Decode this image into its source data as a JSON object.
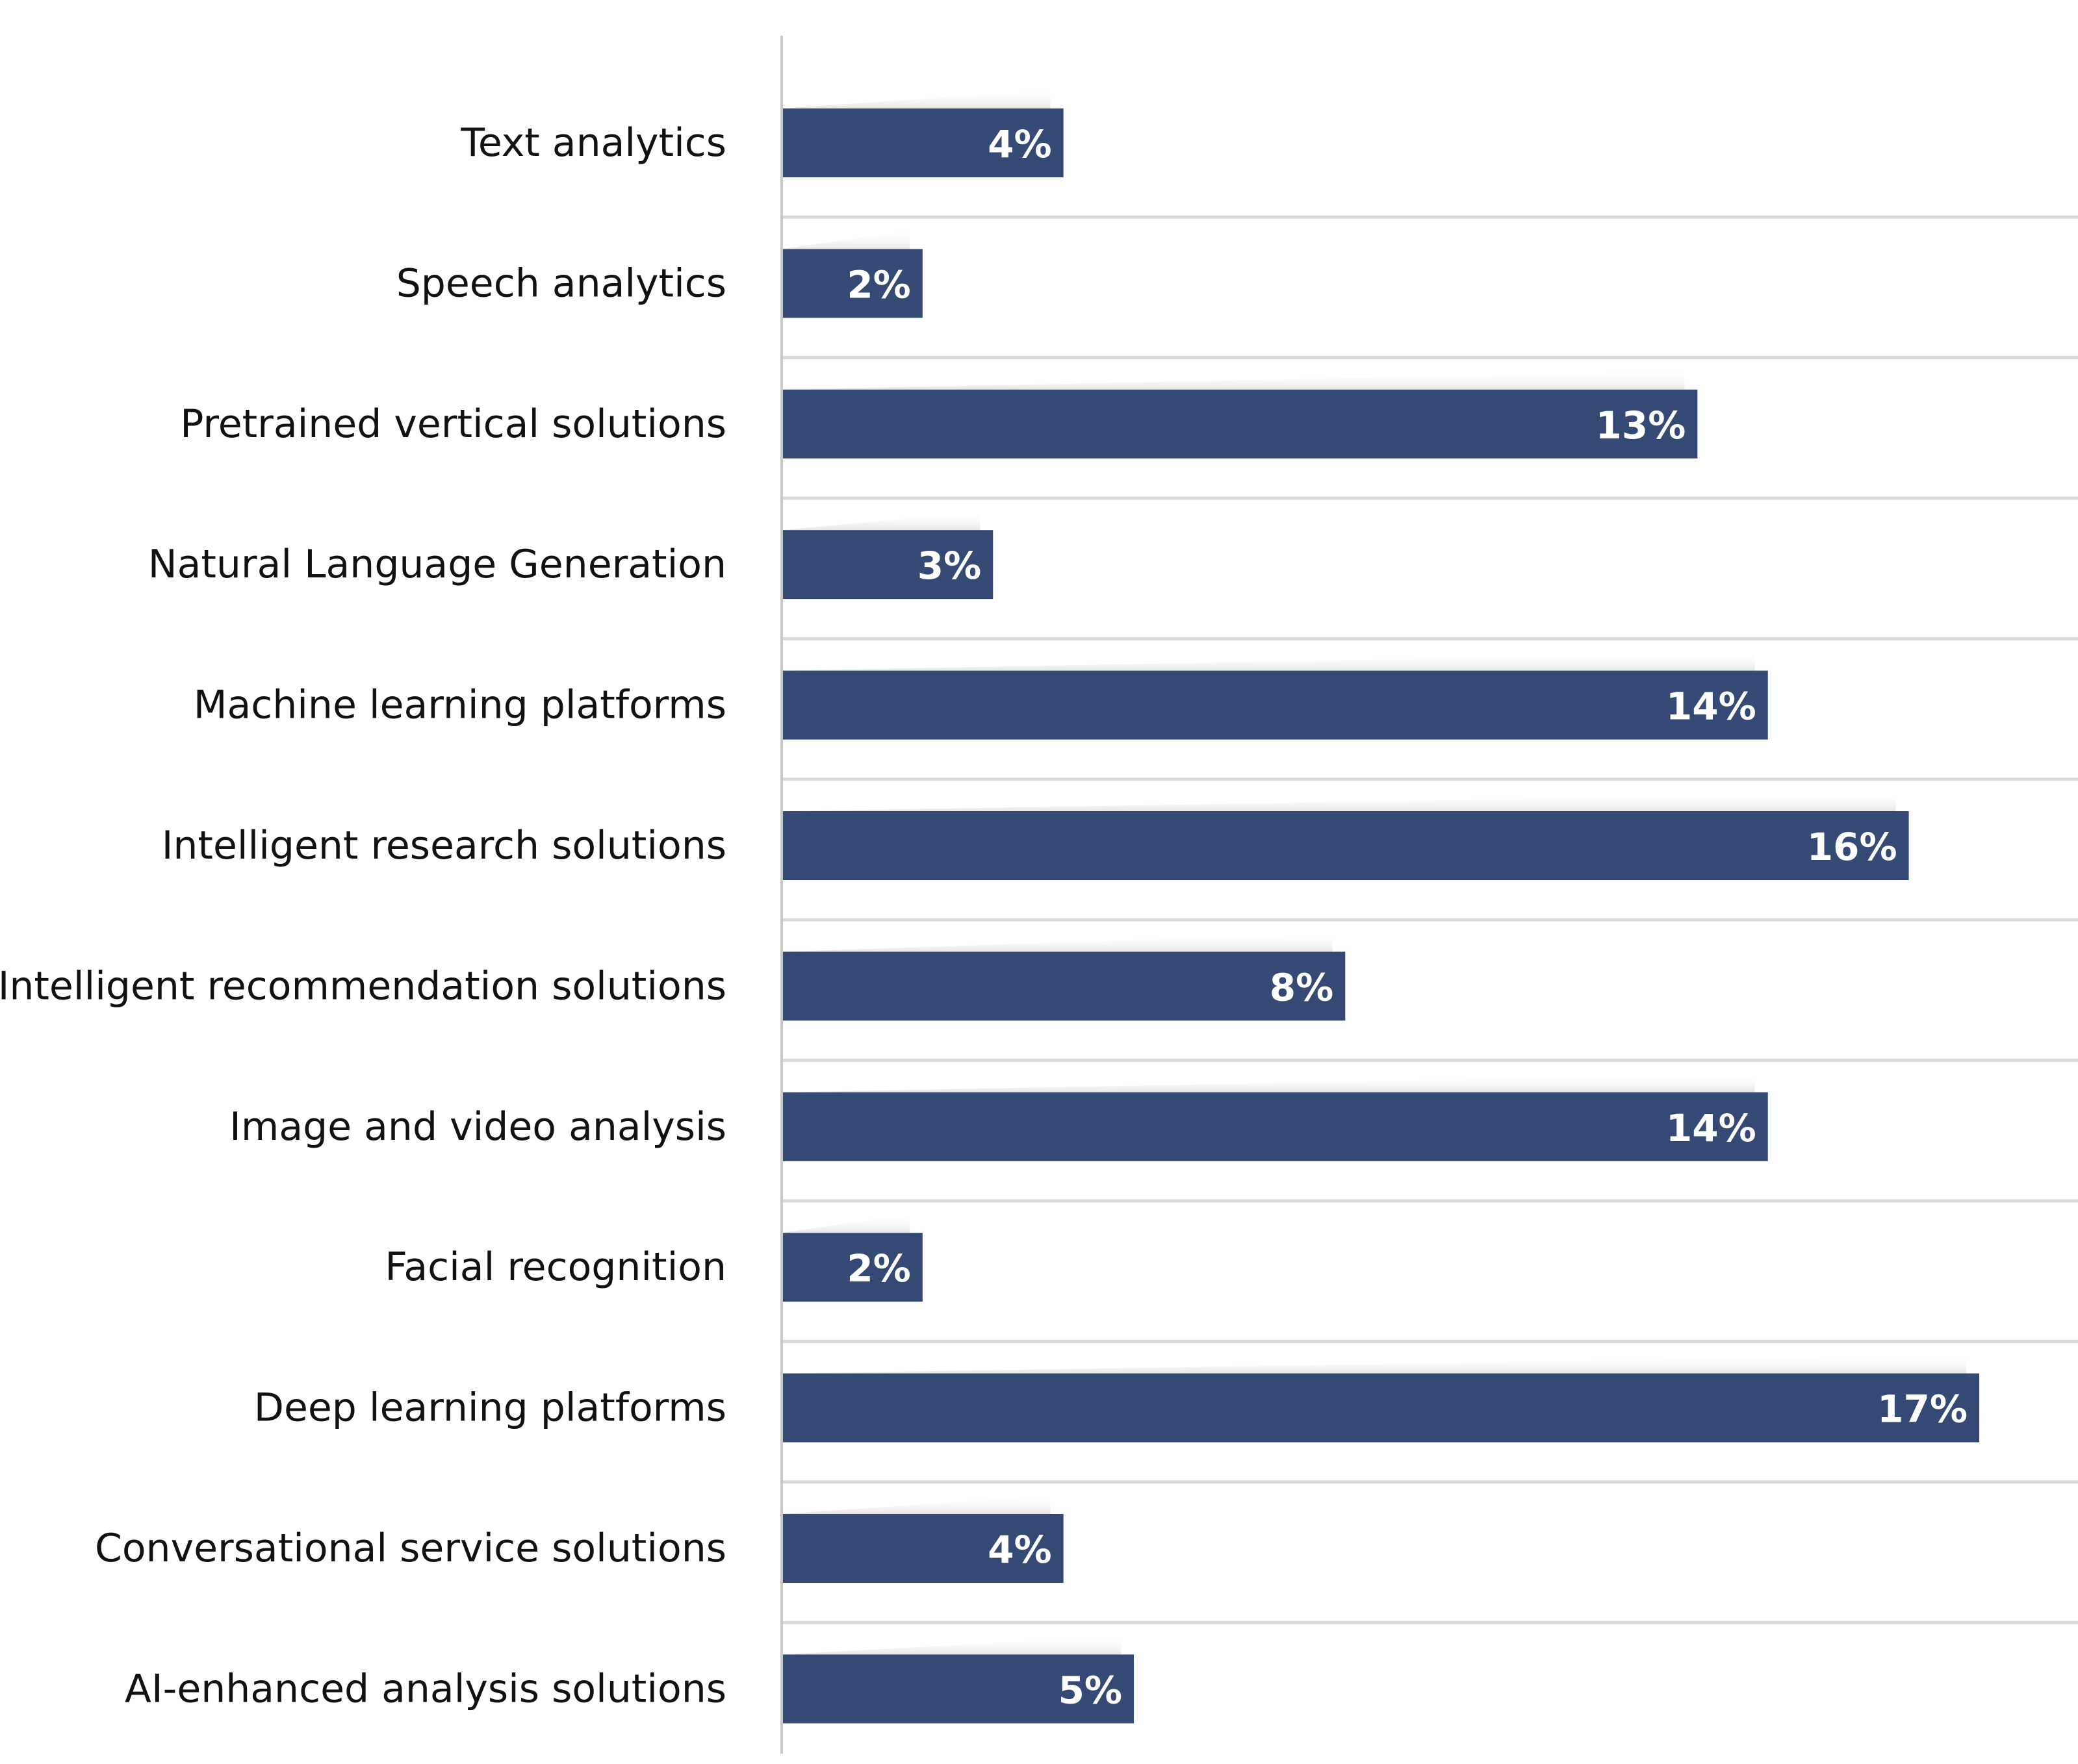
{
  "colors": {
    "bar": "#344A74",
    "separator": "#D9D9D9",
    "axis": "#C8C8C8",
    "label_text": "#111111",
    "value_text": "#FFFFFF"
  },
  "chart_data": {
    "type": "bar",
    "orientation": "horizontal",
    "title": "",
    "xlabel": "",
    "ylabel": "",
    "value_suffix": "%",
    "xlim": [
      0,
      17
    ],
    "grid": false,
    "legend": "none",
    "categories": [
      "Text analytics",
      "Speech analytics",
      "Pretrained vertical solutions",
      "Natural Language Generation",
      "Machine learning platforms",
      "Intelligent research solutions",
      "Intelligent recommendation solutions",
      "Image and video analysis",
      "Facial recognition",
      "Deep learning platforms",
      "Conversational service solutions",
      "AI-enhanced analysis solutions"
    ],
    "values": [
      4,
      2,
      13,
      3,
      14,
      16,
      8,
      14,
      2,
      17,
      4,
      5
    ],
    "value_labels": [
      "4%",
      "2%",
      "13%",
      "3%",
      "14%",
      "16%",
      "8%",
      "14%",
      "2%",
      "17%",
      "4%",
      "5%"
    ]
  }
}
